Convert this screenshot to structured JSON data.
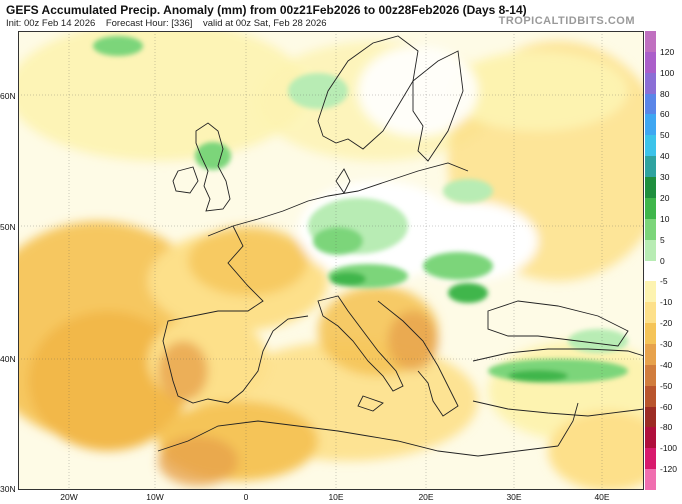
{
  "header": {
    "title": "GEFS Accumulated Precip. Anomaly (mm) from 00z21Feb2026 to 00z28Feb2026 (Days 8-14)",
    "init": "Init: 00z Feb 14 2026",
    "forecast_hour": "Forecast Hour: [336]",
    "valid": "valid at 00z Sat, Feb 28 2026",
    "brand": "TROPICALTIDBITS.COM"
  },
  "map": {
    "region": "Europe",
    "lat_labels": [
      "60N",
      "50N",
      "40N",
      "30N"
    ],
    "lon_labels": [
      "20W",
      "10W",
      "0",
      "10E",
      "20E",
      "30E",
      "40E"
    ]
  },
  "colorbar": {
    "labels": [
      "120",
      "100",
      "80",
      "60",
      "50",
      "40",
      "30",
      "20",
      "10",
      "5",
      "0",
      "-5",
      "-10",
      "-20",
      "-30",
      "-40",
      "-50",
      "-60",
      "-80",
      "-100",
      "-120"
    ],
    "colors": [
      "#c070c0",
      "#ab5fca",
      "#8b6fd6",
      "#5a86e8",
      "#3fa7f2",
      "#3cc3ea",
      "#2fa3a0",
      "#1f8f3e",
      "#3fb64b",
      "#7cd57a",
      "#b8ecb4",
      "#ffffff",
      "#fdf3b0",
      "#fde08a",
      "#f5c458",
      "#e7a24c",
      "#d17d3d",
      "#b9552d",
      "#9c2c24",
      "#b00f3c",
      "#d81a6d",
      "#f06fb0"
    ]
  }
}
